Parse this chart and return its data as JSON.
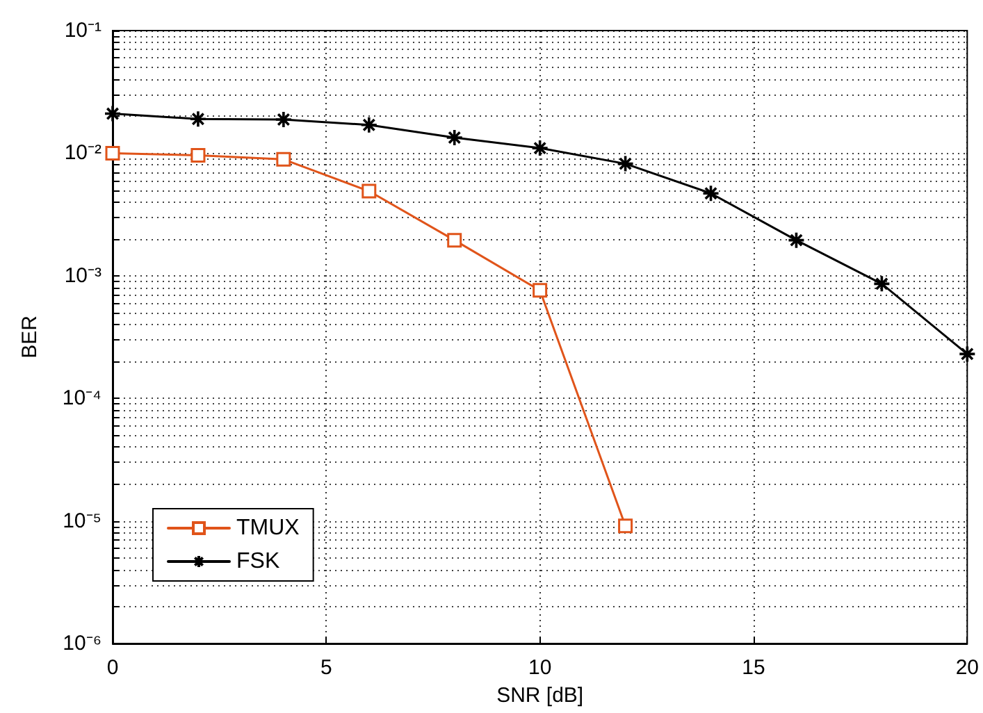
{
  "chart_data": {
    "type": "line",
    "xlabel": "SNR [dB]",
    "ylabel": "BER",
    "log": "y",
    "x": [
      0,
      2,
      4,
      6,
      8,
      10,
      12,
      14,
      16,
      18,
      20
    ],
    "series": [
      {
        "name": "TMUX",
        "color": "#e0541a",
        "marker": "square",
        "values": [
          0.01,
          0.0096,
          0.0089,
          0.0049,
          0.00195,
          0.00076,
          9.1e-06,
          null,
          null,
          null,
          null
        ]
      },
      {
        "name": "FSK",
        "color": "#000000",
        "marker": "cross",
        "values": [
          0.021,
          0.019,
          0.0188,
          0.017,
          0.0134,
          0.011,
          0.0082,
          0.0047,
          0.00195,
          0.00086,
          0.00023
        ]
      }
    ],
    "xlim": [
      0,
      20
    ],
    "xticks": [
      0,
      5,
      10,
      15,
      20
    ],
    "ylim": [
      1e-06,
      0.1
    ],
    "yticks": [
      {
        "value": 1e-06,
        "label": "10⁻⁶"
      },
      {
        "value": 2e-06,
        "label": null
      },
      {
        "value": 3e-06,
        "label": null
      },
      {
        "value": 4e-06,
        "label": null
      },
      {
        "value": 5e-06,
        "label": null
      },
      {
        "value": 6e-06,
        "label": null
      },
      {
        "value": 7e-06,
        "label": null
      },
      {
        "value": 8e-06,
        "label": null
      },
      {
        "value": 9e-06,
        "label": null
      },
      {
        "value": 1e-05,
        "label": "10⁻⁵"
      },
      {
        "value": 2e-05,
        "label": null
      },
      {
        "value": 3e-05,
        "label": null
      },
      {
        "value": 4e-05,
        "label": null
      },
      {
        "value": 5e-05,
        "label": null
      },
      {
        "value": 6e-05,
        "label": null
      },
      {
        "value": 7e-05,
        "label": null
      },
      {
        "value": 8e-05,
        "label": null
      },
      {
        "value": 9e-05,
        "label": null
      },
      {
        "value": 0.0001,
        "label": "10⁻⁴"
      },
      {
        "value": 0.0002,
        "label": null
      },
      {
        "value": 0.0003,
        "label": null
      },
      {
        "value": 0.0004,
        "label": null
      },
      {
        "value": 0.0005,
        "label": null
      },
      {
        "value": 0.0006,
        "label": null
      },
      {
        "value": 0.0007,
        "label": null
      },
      {
        "value": 0.0008,
        "label": null
      },
      {
        "value": 0.0009,
        "label": null
      },
      {
        "value": 0.001,
        "label": "10⁻³"
      },
      {
        "value": 0.002,
        "label": null
      },
      {
        "value": 0.003,
        "label": null
      },
      {
        "value": 0.004,
        "label": null
      },
      {
        "value": 0.005,
        "label": null
      },
      {
        "value": 0.006,
        "label": null
      },
      {
        "value": 0.007,
        "label": null
      },
      {
        "value": 0.008,
        "label": null
      },
      {
        "value": 0.009,
        "label": null
      },
      {
        "value": 0.01,
        "label": "10⁻²"
      },
      {
        "value": 0.02,
        "label": null
      },
      {
        "value": 0.03,
        "label": null
      },
      {
        "value": 0.04,
        "label": null
      },
      {
        "value": 0.05,
        "label": null
      },
      {
        "value": 0.06,
        "label": null
      },
      {
        "value": 0.07,
        "label": null
      },
      {
        "value": 0.08,
        "label": null
      },
      {
        "value": 0.09,
        "label": null
      },
      {
        "value": 0.1,
        "label": "10⁻¹"
      }
    ],
    "grid": true,
    "legend": "bottom left",
    "line_style": "solid"
  }
}
